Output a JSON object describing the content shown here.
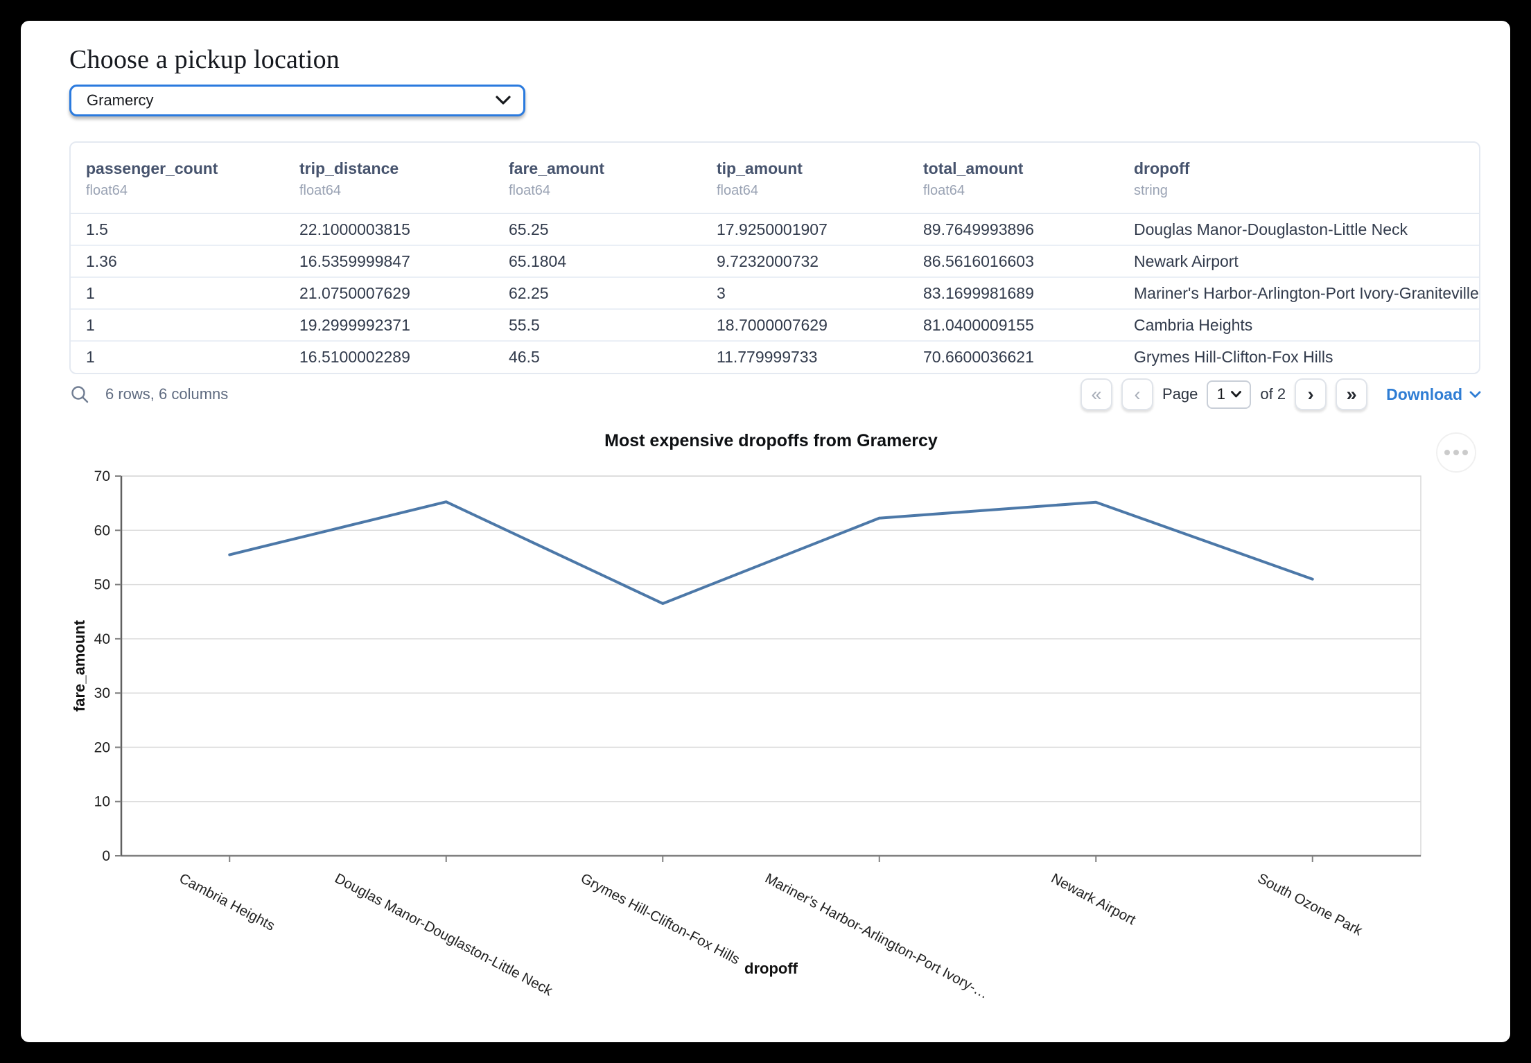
{
  "page": {
    "title": "Choose a pickup location"
  },
  "pickup_select": {
    "value": "Gramercy"
  },
  "table": {
    "columns": [
      {
        "name": "passenger_count",
        "type": "float64"
      },
      {
        "name": "trip_distance",
        "type": "float64"
      },
      {
        "name": "fare_amount",
        "type": "float64"
      },
      {
        "name": "tip_amount",
        "type": "float64"
      },
      {
        "name": "total_amount",
        "type": "float64"
      },
      {
        "name": "dropoff",
        "type": "string"
      }
    ],
    "rows": [
      [
        "1.5",
        "22.1000003815",
        "65.25",
        "17.9250001907",
        "89.7649993896",
        "Douglas Manor-Douglaston-Little Neck"
      ],
      [
        "1.36",
        "16.5359999847",
        "65.1804",
        "9.7232000732",
        "86.5616016603",
        "Newark Airport"
      ],
      [
        "1",
        "21.0750007629",
        "62.25",
        "3",
        "83.1699981689",
        "Mariner's Harbor-Arlington-Port Ivory-Graniteville"
      ],
      [
        "1",
        "19.2999992371",
        "55.5",
        "18.7000007629",
        "81.0400009155",
        "Cambria Heights"
      ],
      [
        "1",
        "16.5100002289",
        "46.5",
        "11.779999733",
        "70.6600036621",
        "Grymes Hill-Clifton-Fox Hills"
      ]
    ]
  },
  "table_footer": {
    "summary": "6 rows, 6 columns",
    "pagination": {
      "first_icon": "«",
      "prev_icon": "‹",
      "page_label": "Page",
      "page_value": "1",
      "of_label": "of 2",
      "next_icon": "›",
      "last_icon": "»"
    },
    "download_label": "Download"
  },
  "colors": {
    "select_border_blue": "#2a7ade",
    "link_blue": "#2f7dd4",
    "line_blue": "#4c78a8",
    "grid_gray": "#dddddd"
  },
  "chart_data": {
    "type": "line",
    "title": "Most expensive dropoffs from Gramercy",
    "xlabel": "dropoff",
    "ylabel": "fare_amount",
    "categories": [
      "Cambria Heights",
      "Douglas Manor-Douglaston-Little Neck",
      "Grymes Hill-Clifton-Fox Hills",
      "Mariner's Harbor-Arlington-Port Ivory-…",
      "Newark Airport",
      "South Ozone Park"
    ],
    "values": [
      55.5,
      65.25,
      46.5,
      62.25,
      65.1804,
      51
    ],
    "ylim": [
      0,
      70
    ],
    "yticks": [
      0,
      10,
      20,
      30,
      40,
      50,
      60,
      70
    ],
    "grid": true,
    "legend": false,
    "line_color": "#4c78a8"
  }
}
